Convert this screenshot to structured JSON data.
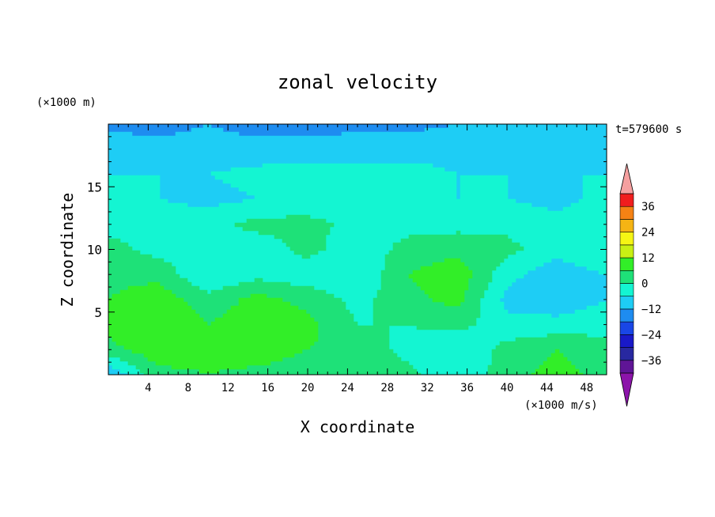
{
  "chart_data": {
    "type": "heatmap",
    "title": "zonal velocity",
    "time_label": "t=579600 s",
    "xlabel": "X coordinate",
    "ylabel": "Z coordinate",
    "x_unit": "(×1000 m/s)",
    "y_unit": "(×1000 m)",
    "xlim": [
      0,
      50
    ],
    "ylim": [
      0,
      20
    ],
    "x_ticks": [
      4,
      8,
      12,
      16,
      20,
      24,
      28,
      32,
      36,
      40,
      44,
      48
    ],
    "y_ticks": [
      5,
      10,
      15
    ],
    "colorbar": {
      "tick_labels": [
        "36",
        "24",
        "12",
        "0",
        "-12",
        "-24",
        "-36"
      ],
      "tick_values": [
        36,
        24,
        12,
        0,
        -12,
        -24,
        -36
      ],
      "range": [
        -42,
        42
      ],
      "levels": [
        {
          "lo": -42,
          "hi": -36,
          "color": "#5f1596"
        },
        {
          "lo": -36,
          "hi": -30,
          "color": "#2828a0"
        },
        {
          "lo": -30,
          "hi": -24,
          "color": "#1919c8"
        },
        {
          "lo": -24,
          "hi": -18,
          "color": "#1946e6"
        },
        {
          "lo": -18,
          "hi": -12,
          "color": "#1e8cf0"
        },
        {
          "lo": -12,
          "hi": -6,
          "color": "#1ecdf5"
        },
        {
          "lo": -6,
          "hi": 0,
          "color": "#14f5d2"
        },
        {
          "lo": 0,
          "hi": 6,
          "color": "#1ee178"
        },
        {
          "lo": 6,
          "hi": 12,
          "color": "#32ee28"
        },
        {
          "lo": 12,
          "hi": 18,
          "color": "#c8f014"
        },
        {
          "lo": 18,
          "hi": 24,
          "color": "#f5f514"
        },
        {
          "lo": 24,
          "hi": 30,
          "color": "#f5b414"
        },
        {
          "lo": 30,
          "hi": 36,
          "color": "#f58214"
        },
        {
          "lo": 36,
          "hi": 42,
          "color": "#f01e1e"
        }
      ],
      "over_color": "#f5a0a0",
      "under_color": "#8c14aa"
    },
    "field": {
      "description_units": "m/s",
      "x_nodes": [
        0,
        5,
        10,
        15,
        20,
        25,
        30,
        35,
        40,
        45,
        50
      ],
      "z_nodes": [
        0,
        2,
        4,
        6,
        8,
        10,
        12,
        14,
        16,
        18,
        20
      ],
      "values": [
        [
          -12,
          4,
          6,
          4,
          2,
          6,
          2,
          -6,
          4,
          8,
          4
        ],
        [
          4,
          10,
          8,
          10,
          6,
          4,
          -2,
          -6,
          2,
          6,
          2
        ],
        [
          8,
          12,
          6,
          10,
          8,
          0,
          0,
          2,
          -4,
          -4,
          -2
        ],
        [
          6,
          10,
          2,
          8,
          4,
          -2,
          4,
          8,
          -8,
          -10,
          -6
        ],
        [
          4,
          4,
          -6,
          -2,
          -4,
          -6,
          6,
          10,
          -4,
          -10,
          -6
        ],
        [
          2,
          -2,
          -4,
          -4,
          2,
          -4,
          2,
          4,
          2,
          -4,
          0
        ],
        [
          -2,
          -2,
          -2,
          2,
          2,
          -2,
          -2,
          -2,
          -2,
          -4,
          -2
        ],
        [
          -4,
          -6,
          -8,
          -6,
          -4,
          -4,
          -6,
          -6,
          -6,
          -8,
          -4
        ],
        [
          -6,
          -6,
          -6,
          -4,
          -4,
          -4,
          -4,
          -6,
          -6,
          -6,
          -6
        ],
        [
          -8,
          -10,
          -10,
          -10,
          -8,
          -8,
          -8,
          -8,
          -8,
          -8,
          -8
        ],
        [
          -14,
          -14,
          -12,
          -14,
          -16,
          -14,
          -14,
          -12,
          -12,
          -12,
          -12
        ]
      ]
    }
  }
}
